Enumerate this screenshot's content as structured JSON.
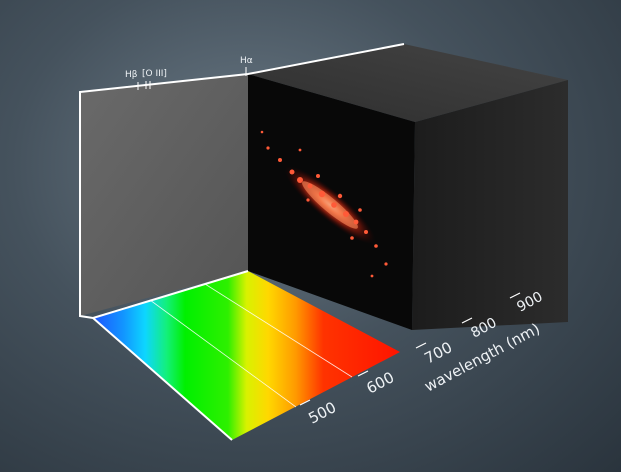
{
  "spectral_lines": [
    {
      "label": "Hβ"
    },
    {
      "label": "[O III]"
    },
    {
      "label": "Hα"
    }
  ],
  "axis": {
    "label": "wavelength (nm)",
    "ticks": [
      "500",
      "600",
      "700",
      "800",
      "900"
    ]
  },
  "colors": {
    "cube_front": "#0a0a0a",
    "cube_side": "#252525",
    "cube_top": "#3a3a3a",
    "back_panel": "#5e5e5e",
    "galaxy_glow": "#ff4a2a",
    "frame_line": "#ffffff"
  }
}
